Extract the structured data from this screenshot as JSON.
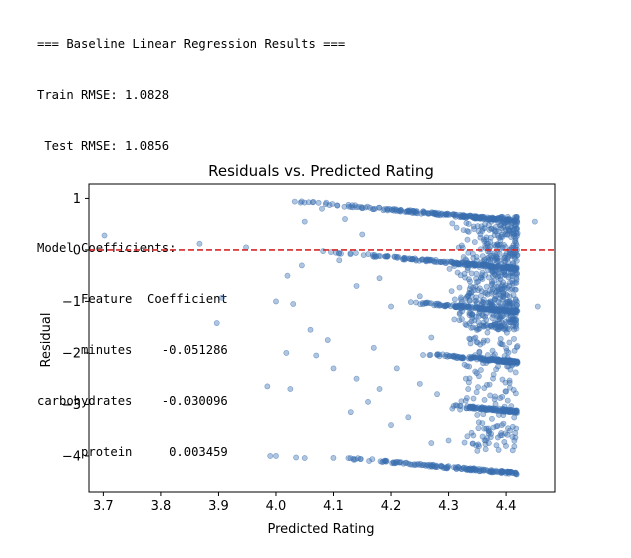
{
  "console": {
    "lines": [
      "=== Baseline Linear Regression Results ===",
      "Train RMSE: 1.0828",
      " Test RMSE: 1.0856",
      "",
      "Model Coefficients:",
      "      Feature  Coefficient",
      "      minutes    -0.051286",
      "carbohydrates    -0.030096",
      "      protein     0.003459"
    ]
  },
  "chart_data": {
    "type": "scatter",
    "title": "Residuals vs. Predicted Rating",
    "xlabel": "Predicted Rating",
    "ylabel": "Residual",
    "xlim": [
      3.675,
      4.485
    ],
    "ylim": [
      -4.7,
      1.28
    ],
    "xticks": [
      3.7,
      3.8,
      3.9,
      4.0,
      4.1,
      4.2,
      4.3,
      4.4
    ],
    "xtick_labels": [
      "3.7",
      "3.8",
      "3.9",
      "4.0",
      "4.1",
      "4.2",
      "4.3",
      "4.4"
    ],
    "yticks": [
      1,
      0,
      -1,
      -2,
      -3,
      -4
    ],
    "ytick_labels": [
      "1",
      "0",
      "−1",
      "−2",
      "−3",
      "−4"
    ],
    "reference_line": {
      "y": 0,
      "color": "#d62728",
      "style": "dashed"
    },
    "marker_color": "#3a6fb0",
    "marker_opacity": 0.4,
    "grid": false,
    "bands": [
      {
        "residual_at_min": 1.0,
        "x_start": 3.98,
        "x_end": 4.42,
        "count": 220
      },
      {
        "residual_at_min": 0.0,
        "x_start": 4.06,
        "x_end": 4.42,
        "count": 200
      },
      {
        "residual_at_min": -1.0,
        "x_start": 4.22,
        "x_end": 4.42,
        "count": 170
      },
      {
        "residual_at_min": -2.0,
        "x_start": 4.24,
        "x_end": 4.42,
        "count": 150
      },
      {
        "residual_at_min": -3.0,
        "x_start": 4.28,
        "x_end": 4.42,
        "count": 110
      },
      {
        "residual_at_min": -4.0,
        "x_start": 4.08,
        "x_end": 4.42,
        "count": 160
      }
    ],
    "points": [
      [
        3.702,
        0.28
      ],
      [
        3.867,
        0.12
      ],
      [
        3.906,
        -0.93
      ],
      [
        3.897,
        -1.42
      ],
      [
        3.948,
        0.05
      ],
      [
        3.985,
        -2.65
      ],
      [
        3.99,
        -4.0
      ],
      [
        4.0,
        -4.0
      ],
      [
        4.018,
        -2.0
      ],
      [
        4.025,
        -2.7
      ],
      [
        4.035,
        -4.03
      ],
      [
        4.05,
        -4.04
      ],
      [
        4.45,
        0.55
      ],
      [
        4.455,
        -1.1
      ],
      [
        4.0,
        -1.0
      ],
      [
        4.02,
        -0.5
      ],
      [
        4.03,
        -1.05
      ],
      [
        4.045,
        -0.3
      ],
      [
        4.06,
        -1.55
      ],
      [
        4.07,
        -2.05
      ],
      [
        4.09,
        -1.75
      ],
      [
        4.1,
        -2.3
      ],
      [
        4.13,
        -3.15
      ],
      [
        4.14,
        -2.5
      ],
      [
        4.16,
        -2.95
      ],
      [
        4.17,
        -1.9
      ],
      [
        4.18,
        -2.7
      ],
      [
        4.2,
        -3.4
      ],
      [
        4.21,
        -2.3
      ],
      [
        4.23,
        -3.25
      ],
      [
        4.25,
        -2.6
      ],
      [
        4.27,
        -3.75
      ],
      [
        4.28,
        -2.8
      ],
      [
        4.3,
        -3.7
      ],
      [
        4.32,
        -3.1
      ],
      [
        4.34,
        -3.55
      ],
      [
        4.35,
        -3.9
      ],
      [
        4.36,
        -2.2
      ],
      [
        4.37,
        -3.75
      ],
      [
        4.38,
        -2.9
      ],
      [
        4.39,
        -3.6
      ],
      [
        4.4,
        -2.75
      ],
      [
        4.05,
        0.55
      ],
      [
        4.08,
        0.8
      ],
      [
        4.12,
        0.6
      ],
      [
        4.15,
        0.3
      ],
      [
        4.11,
        -0.2
      ],
      [
        4.14,
        -0.7
      ],
      [
        4.18,
        -0.55
      ],
      [
        4.2,
        -1.1
      ],
      [
        4.25,
        -0.9
      ],
      [
        4.27,
        -1.7
      ],
      [
        4.31,
        -1.35
      ],
      [
        4.33,
        -2.5
      ],
      [
        4.36,
        -1.8
      ],
      [
        4.38,
        -0.95
      ]
    ]
  }
}
